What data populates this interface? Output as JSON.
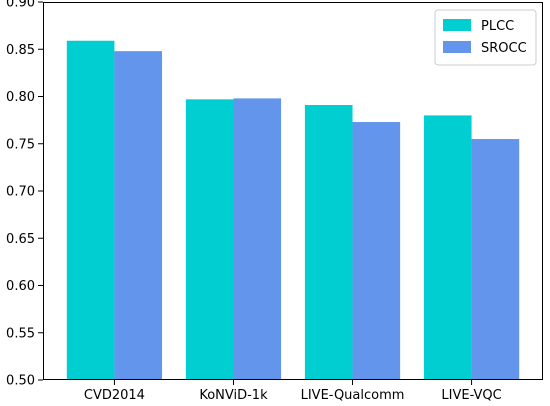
{
  "chart_data": {
    "type": "bar",
    "title": "",
    "xlabel": "",
    "ylabel": "",
    "categories": [
      "CVD2014",
      "KoNViD-1k",
      "LIVE-Qualcomm",
      "LIVE-VQC"
    ],
    "series": [
      {
        "name": "PLCC",
        "values": [
          0.859,
          0.797,
          0.791,
          0.78
        ],
        "color": "#00CED1"
      },
      {
        "name": "SROCC",
        "values": [
          0.848,
          0.798,
          0.773,
          0.755
        ],
        "color": "#6495ED"
      }
    ],
    "ylim": [
      0.5,
      0.9
    ],
    "yticks": [
      "0.50",
      "0.55",
      "0.60",
      "0.65",
      "0.70",
      "0.75",
      "0.80",
      "0.85",
      "0.90"
    ],
    "grid": false,
    "legend_position": "top-right"
  }
}
